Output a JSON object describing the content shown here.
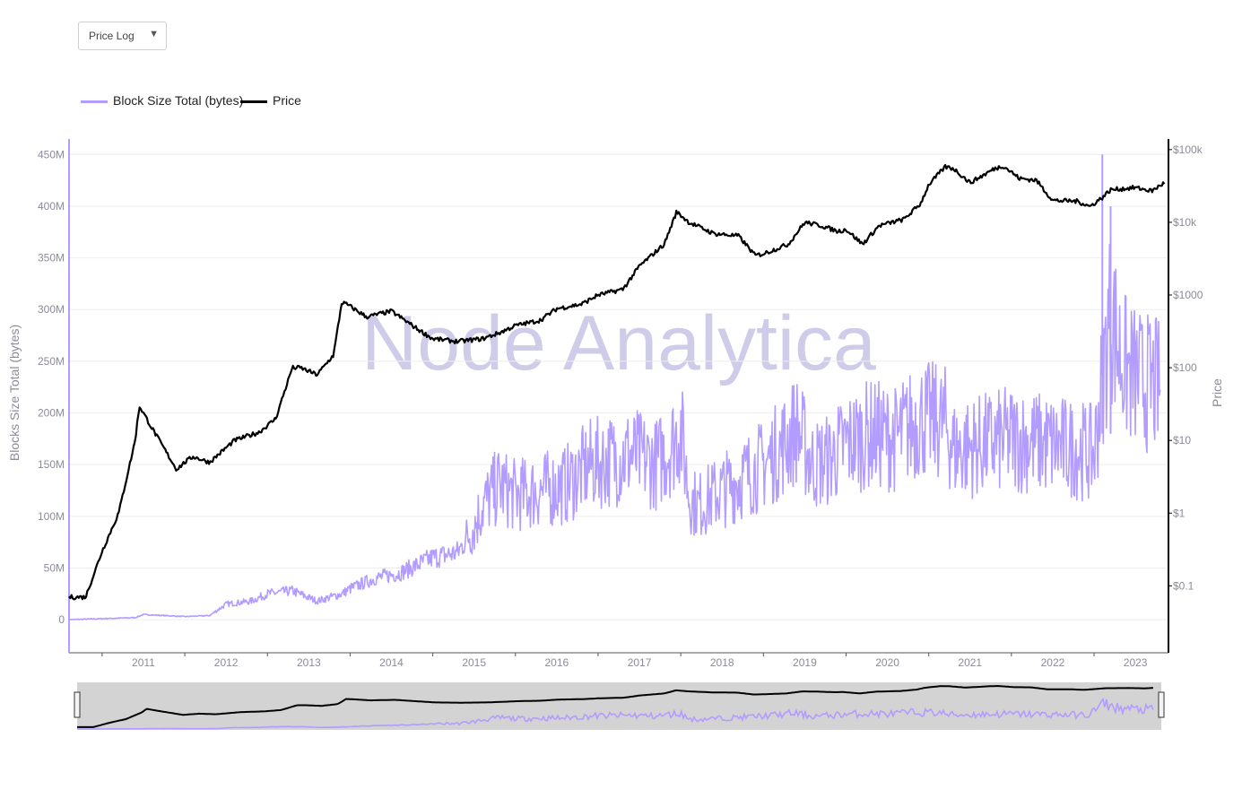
{
  "dropdown": {
    "selected": "Price Log",
    "icon": "caret-down-icon"
  },
  "colors": {
    "block_size": "#b39cff",
    "price": "#000000",
    "axis_left": "#b39cff",
    "axis_right": "#000000",
    "navigator_bg": "#d3d3d3",
    "watermark": "#c6c2ea"
  },
  "watermark": "Node Analytica",
  "chart_data": {
    "type": "line",
    "series": [
      {
        "name": "Block Size Total (bytes)",
        "axis": "left",
        "x": [
          2010.6,
          2011.0,
          2011.4,
          2011.5,
          2012.0,
          2012.3,
          2012.5,
          2012.8,
          2013.0,
          2013.3,
          2013.6,
          2013.9,
          2014.0,
          2014.3,
          2014.6,
          2015.0,
          2015.3,
          2015.5,
          2015.6,
          2015.8,
          2016.0,
          2016.3,
          2016.6,
          2016.9,
          2017.2,
          2017.4,
          2017.7,
          2017.9,
          2018.0,
          2018.1,
          2018.2,
          2018.5,
          2018.8,
          2019.0,
          2019.2,
          2019.4,
          2019.6,
          2019.8,
          2020.0,
          2020.3,
          2020.6,
          2020.9,
          2021.2,
          2021.3,
          2021.4,
          2021.7,
          2022.0,
          2022.4,
          2022.8,
          2023.0,
          2023.1,
          2023.2,
          2023.3,
          2023.4,
          2023.6,
          2023.8
        ],
        "y": [
          0,
          1,
          2,
          5,
          3,
          4,
          15,
          18,
          25,
          28,
          18,
          25,
          30,
          40,
          45,
          60,
          65,
          90,
          110,
          130,
          120,
          125,
          130,
          150,
          155,
          160,
          150,
          170,
          185,
          120,
          110,
          125,
          140,
          150,
          165,
          185,
          150,
          155,
          170,
          180,
          175,
          195,
          190,
          165,
          165,
          170,
          175,
          170,
          165,
          160,
          230,
          300,
          260,
          240,
          230,
          225
        ],
        "peaks": [
          {
            "x": 2023.1,
            "y": 450
          },
          {
            "x": 2023.2,
            "y": 400
          }
        ]
      },
      {
        "name": "Price",
        "axis": "right",
        "x": [
          2010.6,
          2010.8,
          2011.0,
          2011.2,
          2011.4,
          2011.45,
          2011.6,
          2011.9,
          2012.0,
          2012.1,
          2012.3,
          2012.6,
          2012.9,
          2013.1,
          2013.3,
          2013.4,
          2013.6,
          2013.8,
          2013.9,
          2014.0,
          2014.2,
          2014.5,
          2014.8,
          2015.0,
          2015.3,
          2015.6,
          2015.8,
          2016.0,
          2016.3,
          2016.5,
          2016.8,
          2017.0,
          2017.3,
          2017.5,
          2017.8,
          2017.95,
          2018.1,
          2018.4,
          2018.7,
          2018.9,
          2019.0,
          2019.3,
          2019.5,
          2019.7,
          2019.9,
          2020.0,
          2020.2,
          2020.4,
          2020.7,
          2020.9,
          2021.0,
          2021.2,
          2021.3,
          2021.5,
          2021.8,
          2021.9,
          2022.1,
          2022.3,
          2022.5,
          2022.8,
          2022.95,
          2023.1,
          2023.2,
          2023.5,
          2023.7,
          2023.85
        ],
        "y": [
          0.07,
          0.07,
          0.3,
          1.0,
          10,
          30,
          15,
          4,
          5,
          6,
          5,
          10,
          13,
          20,
          100,
          100,
          80,
          150,
          800,
          700,
          500,
          600,
          350,
          250,
          230,
          250,
          300,
          380,
          450,
          650,
          750,
          1000,
          1200,
          2500,
          5000,
          14000,
          10000,
          7000,
          6500,
          3500,
          3700,
          5000,
          10000,
          9000,
          7500,
          8000,
          5000,
          9000,
          11000,
          18000,
          33000,
          58000,
          55000,
          35000,
          55000,
          60000,
          40000,
          38000,
          20000,
          19500,
          16500,
          22000,
          28000,
          30000,
          27000,
          35000
        ]
      }
    ],
    "xlim": [
      2010.6,
      2023.9
    ],
    "x_ticks": [
      "2011",
      "2012",
      "2013",
      "2014",
      "2015",
      "2016",
      "2017",
      "2018",
      "2019",
      "2020",
      "2021",
      "2022",
      "2023"
    ],
    "y_left": {
      "label": "Blocks Size Total (bytes)",
      "ticks": [
        "0",
        "50M",
        "100M",
        "150M",
        "200M",
        "250M",
        "300M",
        "350M",
        "400M",
        "450M"
      ],
      "range_millions": [
        -32,
        465
      ]
    },
    "y_right": {
      "label": "Price",
      "scale": "log",
      "ticks": [
        "$0.1",
        "$1",
        "$10",
        "$100",
        "$1000",
        "$10k",
        "$100k"
      ],
      "range": [
        0.012,
        140000
      ]
    },
    "grid": true,
    "legend": "top-left",
    "navigator": true
  }
}
